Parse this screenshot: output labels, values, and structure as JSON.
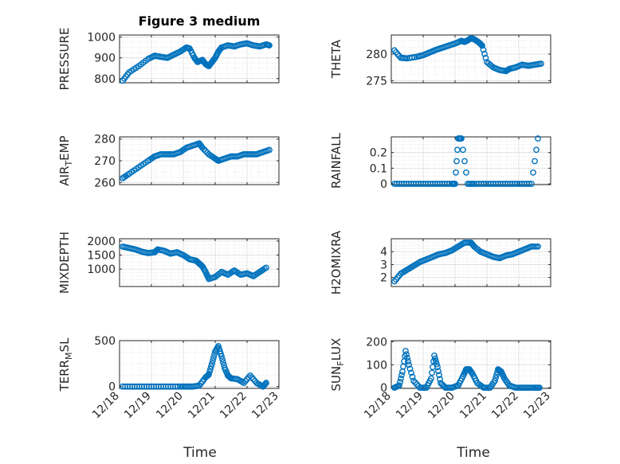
{
  "figure": {
    "title": "Figure 3 medium",
    "xlabel": "Time",
    "marker_color": "#0072BD",
    "marker": "open-circle",
    "grid": true,
    "minor_grid": true
  },
  "chart_data": [
    {
      "type": "scatter",
      "name": "PRESSURE",
      "ylabel": "PRESSURE",
      "xlim": [
        0,
        5
      ],
      "ylim": [
        780,
        1010
      ],
      "yticks": [
        800,
        900,
        1000
      ],
      "xticks": [
        0,
        1,
        2,
        3,
        4,
        5
      ],
      "xticklabels": [],
      "title": "Figure 3 medium",
      "x": [
        0.1,
        0.3,
        0.6,
        0.9,
        1.1,
        1.3,
        1.5,
        1.7,
        1.9,
        2.1,
        2.2,
        2.35,
        2.45,
        2.6,
        2.7,
        2.8,
        2.9,
        3.0,
        3.1,
        3.2,
        3.4,
        3.6,
        3.8,
        4.0,
        4.2,
        4.4,
        4.6,
        4.7
      ],
      "y": [
        790,
        830,
        860,
        895,
        910,
        905,
        900,
        915,
        930,
        950,
        945,
        900,
        880,
        890,
        870,
        860,
        880,
        900,
        930,
        950,
        960,
        955,
        965,
        970,
        960,
        955,
        965,
        960
      ]
    },
    {
      "type": "scatter",
      "name": "THETA",
      "ylabel": "THETA",
      "xlim": [
        0,
        5
      ],
      "ylim": [
        274.6,
        283.6
      ],
      "yticks": [
        275,
        280
      ],
      "xticks": [
        0,
        1,
        2,
        3,
        4,
        5
      ],
      "xticklabels": [],
      "x": [
        0.1,
        0.3,
        0.5,
        0.8,
        1.0,
        1.2,
        1.4,
        1.6,
        1.8,
        2.0,
        2.2,
        2.3,
        2.4,
        2.5,
        2.6,
        2.75,
        2.85,
        3.0,
        3.2,
        3.4,
        3.6,
        3.7,
        3.9,
        4.1,
        4.3,
        4.5,
        4.7
      ],
      "y": [
        280.7,
        279.3,
        279.2,
        279.5,
        279.8,
        280.3,
        280.8,
        281.2,
        281.6,
        282.0,
        282.5,
        282.3,
        282.6,
        283.0,
        282.8,
        282.2,
        281.6,
        278.5,
        277.5,
        277.0,
        276.8,
        277.2,
        277.5,
        278.0,
        277.8,
        278.0,
        278.2
      ]
    },
    {
      "type": "scatter",
      "name": "AIR_TEMP",
      "ylabel": "AIR_TEMP",
      "xlim": [
        0,
        5
      ],
      "ylim": [
        259,
        281
      ],
      "yticks": [
        260,
        270,
        280
      ],
      "xticks": [
        0,
        1,
        2,
        3,
        4,
        5
      ],
      "xticklabels": [],
      "x": [
        0.1,
        0.3,
        0.6,
        0.9,
        1.1,
        1.3,
        1.5,
        1.7,
        1.9,
        2.1,
        2.3,
        2.5,
        2.6,
        2.8,
        3.0,
        3.1,
        3.3,
        3.5,
        3.7,
        3.9,
        4.1,
        4.3,
        4.5,
        4.7
      ],
      "y": [
        262,
        264,
        267,
        270,
        272,
        273,
        273,
        273,
        274,
        276,
        277,
        278,
        276,
        273,
        271,
        270,
        271,
        272,
        272,
        273,
        273,
        273,
        274,
        275
      ]
    },
    {
      "type": "scatter",
      "name": "RAINFALL",
      "ylabel": "RAINFALL",
      "xlim": [
        0,
        5
      ],
      "ylim": [
        -0.005,
        0.3
      ],
      "yticks": [
        0,
        0.1,
        0.2
      ],
      "xticks": [
        0,
        1,
        2,
        3,
        4,
        5
      ],
      "xticklabels": [],
      "x": [
        0.1,
        0.4,
        0.7,
        1.0,
        1.3,
        1.6,
        1.9,
        2.0,
        2.1,
        2.2,
        2.4,
        2.6,
        2.9,
        3.2,
        3.5,
        3.8,
        4.1,
        4.4,
        4.6
      ],
      "y": [
        0,
        0,
        0,
        0,
        0,
        0,
        0,
        0,
        0.29,
        0.29,
        0,
        0,
        0,
        0,
        0,
        0,
        0,
        0,
        0.29
      ]
    },
    {
      "type": "scatter",
      "name": "MIXDEPTH",
      "ylabel": "MIXDEPTH",
      "xlim": [
        0,
        5
      ],
      "ylim": [
        380,
        2080
      ],
      "yticks": [
        1000,
        1500,
        2000
      ],
      "xticks": [
        0,
        1,
        2,
        3,
        4,
        5
      ],
      "xticklabels": [],
      "x": [
        0.1,
        0.3,
        0.5,
        0.7,
        0.9,
        1.1,
        1.2,
        1.4,
        1.6,
        1.8,
        2.0,
        2.2,
        2.4,
        2.5,
        2.6,
        2.7,
        2.8,
        3.0,
        3.2,
        3.4,
        3.6,
        3.8,
        4.0,
        4.2,
        4.4,
        4.6
      ],
      "y": [
        1800,
        1750,
        1700,
        1620,
        1570,
        1600,
        1700,
        1650,
        1550,
        1600,
        1500,
        1350,
        1300,
        1200,
        1100,
        900,
        650,
        720,
        900,
        800,
        950,
        800,
        850,
        750,
        900,
        1050
      ]
    },
    {
      "type": "scatter",
      "name": "H2OMIXRA",
      "ylabel": "H2OMIXRA",
      "xlim": [
        0,
        5
      ],
      "ylim": [
        1.3,
        5.0
      ],
      "yticks": [
        2,
        3,
        4
      ],
      "xticks": [
        0,
        1,
        2,
        3,
        4,
        5
      ],
      "xticklabels": [],
      "x": [
        0.1,
        0.3,
        0.5,
        0.7,
        0.9,
        1.1,
        1.3,
        1.5,
        1.7,
        1.9,
        2.1,
        2.3,
        2.5,
        2.6,
        2.8,
        3.0,
        3.2,
        3.4,
        3.6,
        3.8,
        4.0,
        4.2,
        4.4,
        4.6
      ],
      "y": [
        1.7,
        2.3,
        2.6,
        2.9,
        3.2,
        3.4,
        3.6,
        3.8,
        3.9,
        4.1,
        4.4,
        4.7,
        4.7,
        4.4,
        4.0,
        3.8,
        3.6,
        3.5,
        3.7,
        3.8,
        4.0,
        4.2,
        4.4,
        4.4
      ]
    },
    {
      "type": "scatter",
      "name": "TERR_MSL",
      "ylabel": "TERR_MSL",
      "xlim": [
        0,
        5
      ],
      "ylim": [
        -20,
        500
      ],
      "yticks": [
        0,
        500
      ],
      "xticks": [
        0,
        1,
        2,
        3,
        4,
        5
      ],
      "xticklabels": [
        "12/18",
        "12/19",
        "12/20",
        "12/21",
        "12/22",
        "12/23"
      ],
      "x": [
        0.1,
        0.4,
        0.7,
        1.0,
        1.3,
        1.6,
        1.9,
        2.1,
        2.3,
        2.5,
        2.7,
        2.8,
        2.9,
        3.0,
        3.1,
        3.2,
        3.3,
        3.4,
        3.5,
        3.7,
        3.9,
        4.1,
        4.3,
        4.5,
        4.6
      ],
      "y": [
        0,
        0,
        0,
        0,
        0,
        0,
        0,
        0,
        0,
        10,
        100,
        130,
        250,
        380,
        440,
        330,
        200,
        120,
        90,
        80,
        40,
        120,
        40,
        0,
        40
      ]
    },
    {
      "type": "scatter",
      "name": "SUN_FLUX",
      "ylabel": "SUN_FLUX",
      "xlim": [
        0,
        5
      ],
      "ylim": [
        -3,
        205
      ],
      "yticks": [
        0,
        100,
        200
      ],
      "xticks": [
        0,
        1,
        2,
        3,
        4,
        5
      ],
      "xticklabels": [
        "12/18",
        "12/19",
        "12/20",
        "12/21",
        "12/22",
        "12/23"
      ],
      "x": [
        0.1,
        0.25,
        0.35,
        0.45,
        0.55,
        0.7,
        0.9,
        1.1,
        1.25,
        1.35,
        1.45,
        1.55,
        1.7,
        1.9,
        2.1,
        2.25,
        2.35,
        2.45,
        2.55,
        2.7,
        2.9,
        3.1,
        3.25,
        3.35,
        3.45,
        3.55,
        3.7,
        3.9,
        4.1,
        4.3,
        4.5,
        4.65
      ],
      "y": [
        0,
        10,
        70,
        160,
        100,
        30,
        0,
        0,
        40,
        140,
        90,
        20,
        0,
        0,
        10,
        50,
        80,
        80,
        60,
        20,
        0,
        0,
        30,
        80,
        70,
        40,
        10,
        0,
        0,
        0,
        0,
        0
      ]
    }
  ]
}
